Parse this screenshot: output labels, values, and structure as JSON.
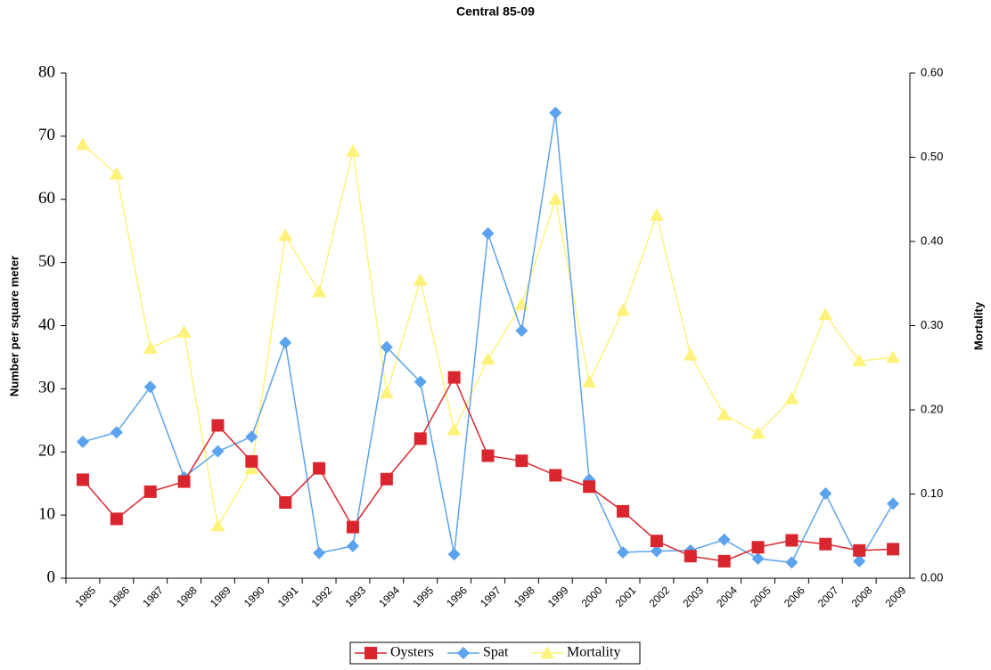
{
  "chart_data": {
    "type": "line",
    "title": "Central 85-09",
    "y_label": "Number per square meter",
    "y2_label": "Mortality",
    "categories": [
      "1985",
      "1986",
      "1987",
      "1988",
      "1989",
      "1990",
      "1991",
      "1992",
      "1993",
      "1994",
      "1995",
      "1996",
      "1997",
      "1998",
      "1999",
      "2000",
      "2001",
      "2002",
      "2003",
      "2004",
      "2005",
      "2006",
      "2007",
      "2008",
      "2009"
    ],
    "ylim": [
      0,
      80
    ],
    "yticks": [
      0,
      10,
      20,
      30,
      40,
      50,
      60,
      70,
      80
    ],
    "y2lim": [
      0,
      0.6
    ],
    "y2ticks": [
      {
        "value": 0,
        "label": "0.00"
      },
      {
        "value": 0.1,
        "label": "0.10"
      },
      {
        "value": 0.2,
        "label": "0.20"
      },
      {
        "value": 0.3,
        "label": "0.30"
      },
      {
        "value": 0.4,
        "label": "0.40"
      },
      {
        "value": 0.5,
        "label": "0.50"
      },
      {
        "value": 0.6,
        "label": "0.60"
      }
    ],
    "legend": "bottom",
    "series": [
      {
        "name": "Oysters",
        "color": "#d9262e",
        "marker": "square",
        "values": [
          15.6,
          9.4,
          13.7,
          15.3,
          24.2,
          18.5,
          12.0,
          17.4,
          8.1,
          15.7,
          22.1,
          31.8,
          19.4,
          18.6,
          16.3,
          14.5,
          10.6,
          5.9,
          3.5,
          2.7,
          4.9,
          6.0,
          5.4,
          4.4,
          4.6
        ]
      },
      {
        "name": "Spat",
        "color": "#5ba3ee",
        "marker": "diamond",
        "values": [
          21.6,
          23.1,
          30.3,
          16.0,
          20.1,
          22.4,
          37.3,
          4.0,
          5.1,
          36.6,
          31.1,
          3.8,
          54.6,
          39.2,
          73.7,
          15.6,
          4.1,
          4.3,
          4.4,
          6.1,
          3.1,
          2.5,
          13.4,
          2.7,
          11.8
        ]
      },
      {
        "name": "Mortality",
        "color": "#fff27a",
        "marker": "triangle",
        "axis": "y2",
        "values": [
          0.515,
          0.48,
          0.273,
          0.292,
          0.062,
          0.13,
          0.407,
          0.34,
          0.507,
          0.22,
          0.354,
          0.176,
          0.26,
          0.325,
          0.45,
          0.233,
          0.318,
          0.431,
          0.265,
          0.194,
          0.172,
          0.213,
          0.313,
          0.258,
          0.262
        ]
      }
    ]
  }
}
